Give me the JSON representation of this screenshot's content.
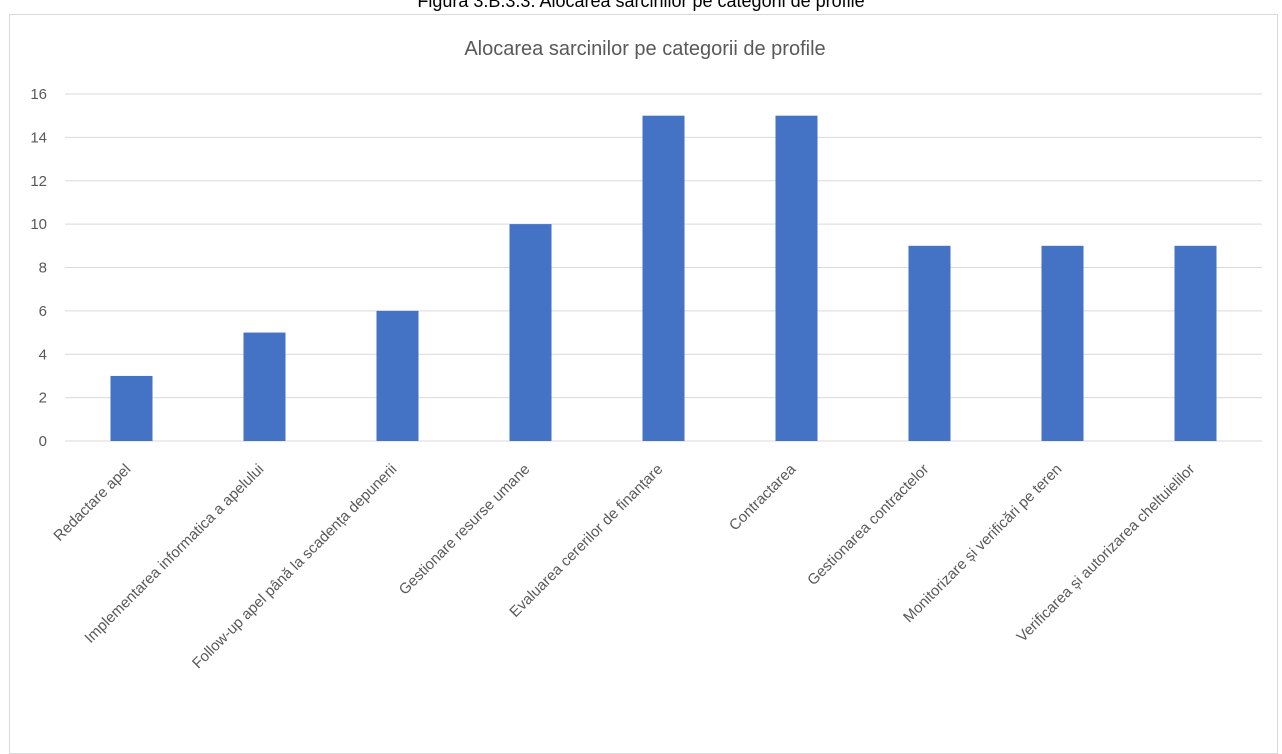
{
  "caption": "Figura 3.B.3.3. Alocarea sarcinilor pe categorii de profile",
  "chart_data": {
    "type": "bar",
    "title": "Alocarea sarcinilor pe categorii de profile",
    "xlabel": "",
    "ylabel": "",
    "categories": [
      "Redactare apel",
      "Implementarea informatica a apelului",
      "Follow-up apel până la scadența depunerii",
      "Gestionare resurse umane",
      "Evaluarea cererilor de finanțare",
      "Contractarea",
      "Gestionarea contractelor",
      "Monitorizare și verificări pe teren",
      "Verificarea și autorizarea cheltuielilor"
    ],
    "values": [
      3,
      5,
      6,
      10,
      15,
      15,
      9,
      9,
      9
    ],
    "ylim": [
      0,
      16
    ],
    "yticks": [
      "0",
      "2",
      "4",
      "6",
      "8",
      "10",
      "12",
      "14",
      "16"
    ],
    "grid": true,
    "legend": "none",
    "bar_color": "#4472C4",
    "grid_color": "#d9d9d9"
  }
}
